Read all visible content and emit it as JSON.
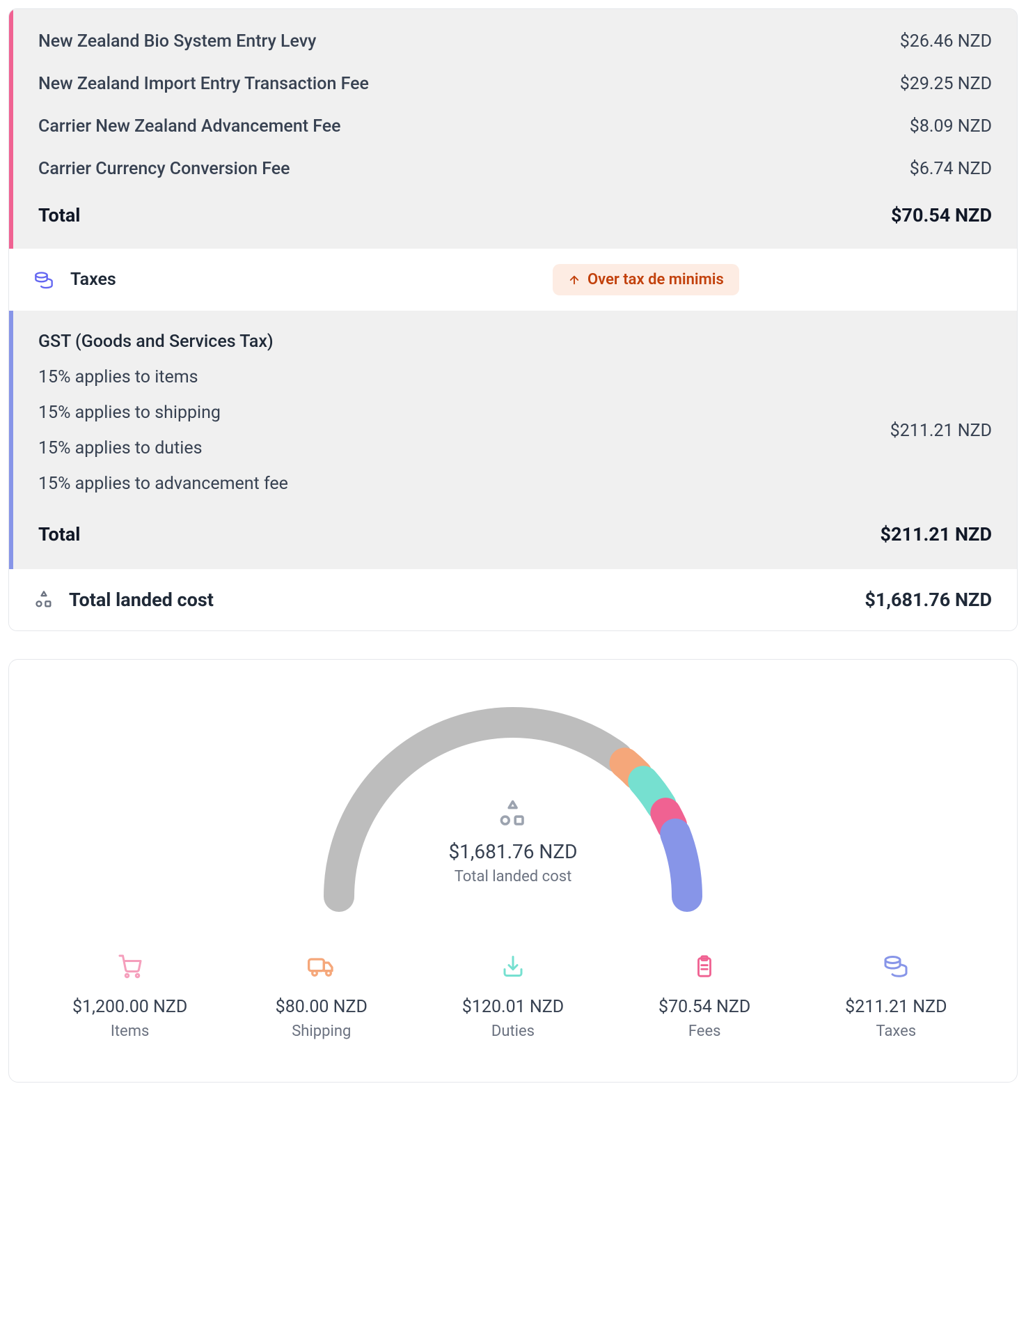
{
  "colors": {
    "fees_accent": "#f06292",
    "taxes_accent": "#8795e8",
    "panel_bg": "#f0f0f0",
    "badge_bg": "#fdece3",
    "badge_text": "#c2410c",
    "text_primary": "#1f2937",
    "text_secondary": "#6b7280",
    "gauge": {
      "items": "#bdbdbd",
      "shipping": "#f5a77a",
      "duties": "#76e0d0",
      "fees": "#f06292",
      "taxes": "#8795e8"
    },
    "icons": {
      "cart": "#f59fbc",
      "truck": "#f5a77a",
      "download": "#76e0d0",
      "clipboard": "#f06292",
      "coins": "#8795e8",
      "shapes": "#9ca3af",
      "coins_header": "#6366f1"
    }
  },
  "fees": {
    "items": [
      {
        "label": "New Zealand Bio System Entry Levy",
        "value": "$26.46 NZD"
      },
      {
        "label": "New Zealand Import Entry Transaction Fee",
        "value": "$29.25 NZD"
      },
      {
        "label": "Carrier New Zealand Advancement Fee",
        "value": "$8.09 NZD"
      },
      {
        "label": "Carrier Currency Conversion Fee",
        "value": "$6.74 NZD"
      }
    ],
    "total_label": "Total",
    "total_value": "$70.54 NZD"
  },
  "taxesHeader": {
    "title": "Taxes",
    "badge": "Over tax de minimis"
  },
  "taxes": {
    "title": "GST (Goods and Services Tax)",
    "lines": [
      "15% applies to items",
      "15% applies to shipping",
      "15% applies to duties",
      "15% applies to advancement fee"
    ],
    "value": "$211.21 NZD",
    "total_label": "Total",
    "total_value": "$211.21 NZD"
  },
  "landed": {
    "label": "Total landed cost",
    "value": "$1,681.76 NZD"
  },
  "gauge": {
    "center_amount": "$1,681.76 NZD",
    "center_label": "Total landed cost",
    "segments": [
      {
        "key": "items",
        "amount": 1200.0,
        "color": "#bdbdbd"
      },
      {
        "key": "shipping",
        "amount": 80.0,
        "color": "#f5a77a"
      },
      {
        "key": "duties",
        "amount": 120.01,
        "color": "#76e0d0"
      },
      {
        "key": "fees",
        "amount": 70.54,
        "color": "#f06292"
      },
      {
        "key": "taxes",
        "amount": 211.21,
        "color": "#8795e8"
      }
    ],
    "total": 1681.76,
    "stroke_width": 44,
    "gap_deg": 3
  },
  "breakdown": [
    {
      "icon": "cart",
      "amount": "$1,200.00 NZD",
      "label": "Items",
      "color": "#f59fbc"
    },
    {
      "icon": "truck",
      "amount": "$80.00 NZD",
      "label": "Shipping",
      "color": "#f5a77a"
    },
    {
      "icon": "download",
      "amount": "$120.01 NZD",
      "label": "Duties",
      "color": "#76e0d0"
    },
    {
      "icon": "clipboard",
      "amount": "$70.54 NZD",
      "label": "Fees",
      "color": "#f06292"
    },
    {
      "icon": "coins",
      "amount": "$211.21 NZD",
      "label": "Taxes",
      "color": "#8795e8"
    }
  ]
}
